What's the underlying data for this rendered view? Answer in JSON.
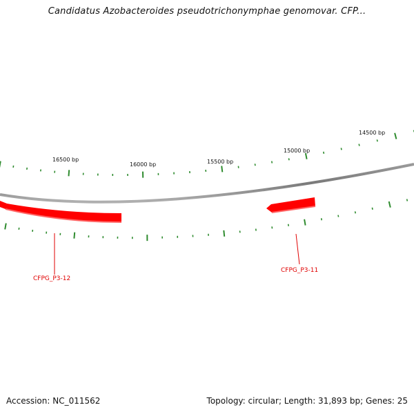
{
  "title": "Candidatus Azobacteroides pseudotrichonymphae genomovar. CFP...",
  "footer": {
    "accession": "Accession: NC_011562",
    "summary": "Topology: circular; Length: 31,893 bp; Genes: 25"
  },
  "map": {
    "outer_scale_labels": [
      {
        "text": "16500 bp",
        "position_bp": 16500
      },
      {
        "text": "16000 bp",
        "position_bp": 16000
      },
      {
        "text": "15500 bp",
        "position_bp": 15500
      },
      {
        "text": "15000 bp",
        "position_bp": 15000
      },
      {
        "text": "14500 bp",
        "position_bp": 14500
      }
    ],
    "genes": [
      {
        "name": "CFPG_P3-12",
        "strand": "reverse"
      },
      {
        "name": "CFPG_P3-11",
        "strand": "reverse"
      }
    ]
  },
  "colors": {
    "backbone": "#8a8a8a",
    "gene_fill": "#ff0000",
    "gene_label": "#e00000",
    "tick": "#2e8b2e"
  }
}
